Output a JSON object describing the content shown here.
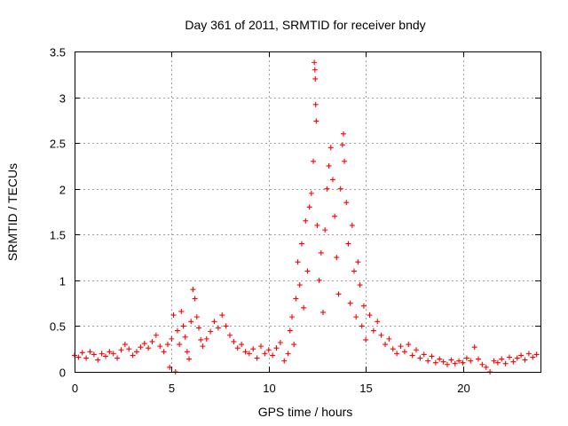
{
  "chart_data": {
    "type": "scatter",
    "title": "Day 361 of 2011, SRMTID for receiver bndy",
    "xlabel": "GPS time / hours",
    "ylabel": "SRMTID / TECUs",
    "xlim": [
      0,
      24
    ],
    "ylim": [
      0,
      3.5
    ],
    "xticks": [
      0,
      5,
      10,
      15,
      20
    ],
    "xtick_labels": [
      "0",
      "5",
      "10",
      "15",
      "20"
    ],
    "yticks": [
      0,
      0.5,
      1,
      1.5,
      2,
      2.5,
      3,
      3.5
    ],
    "ytick_labels": [
      "0",
      "0.5",
      "1",
      "1.5",
      "2",
      "2.5",
      "3",
      "3.5"
    ],
    "grid": true,
    "marker": "plus",
    "color": "#ff0000",
    "series": [
      {
        "name": "SRMTID",
        "points": [
          [
            0.0,
            0.18
          ],
          [
            0.2,
            0.16
          ],
          [
            0.4,
            0.21
          ],
          [
            0.6,
            0.15
          ],
          [
            0.8,
            0.22
          ],
          [
            1.0,
            0.19
          ],
          [
            1.2,
            0.13
          ],
          [
            1.4,
            0.2
          ],
          [
            1.6,
            0.17
          ],
          [
            1.8,
            0.22
          ],
          [
            2.0,
            0.2
          ],
          [
            2.2,
            0.15
          ],
          [
            2.4,
            0.24
          ],
          [
            2.6,
            0.3
          ],
          [
            2.8,
            0.25
          ],
          [
            3.0,
            0.18
          ],
          [
            3.2,
            0.22
          ],
          [
            3.4,
            0.27
          ],
          [
            3.6,
            0.31
          ],
          [
            3.8,
            0.26
          ],
          [
            4.0,
            0.33
          ],
          [
            4.2,
            0.4
          ],
          [
            4.4,
            0.28
          ],
          [
            4.6,
            0.22
          ],
          [
            4.8,
            0.3
          ],
          [
            4.9,
            0.05
          ],
          [
            5.0,
            0.36
          ],
          [
            5.1,
            0.62
          ],
          [
            5.2,
            0.0
          ],
          [
            5.3,
            0.45
          ],
          [
            5.4,
            0.3
          ],
          [
            5.5,
            0.66
          ],
          [
            5.6,
            0.5
          ],
          [
            5.7,
            0.38
          ],
          [
            5.8,
            0.22
          ],
          [
            5.9,
            0.14
          ],
          [
            6.0,
            0.55
          ],
          [
            6.1,
            0.9
          ],
          [
            6.2,
            0.8
          ],
          [
            6.3,
            0.6
          ],
          [
            6.4,
            0.48
          ],
          [
            6.5,
            0.35
          ],
          [
            6.6,
            0.28
          ],
          [
            6.8,
            0.36
          ],
          [
            7.0,
            0.44
          ],
          [
            7.2,
            0.55
          ],
          [
            7.4,
            0.48
          ],
          [
            7.6,
            0.62
          ],
          [
            7.8,
            0.5
          ],
          [
            8.0,
            0.4
          ],
          [
            8.2,
            0.33
          ],
          [
            8.4,
            0.26
          ],
          [
            8.6,
            0.3
          ],
          [
            8.8,
            0.22
          ],
          [
            9.0,
            0.2
          ],
          [
            9.2,
            0.25
          ],
          [
            9.4,
            0.15
          ],
          [
            9.6,
            0.28
          ],
          [
            9.8,
            0.2
          ],
          [
            10.0,
            0.24
          ],
          [
            10.2,
            0.18
          ],
          [
            10.4,
            0.26
          ],
          [
            10.6,
            0.32
          ],
          [
            10.8,
            0.12
          ],
          [
            11.0,
            0.2
          ],
          [
            11.1,
            0.45
          ],
          [
            11.2,
            0.6
          ],
          [
            11.3,
            0.3
          ],
          [
            11.4,
            0.8
          ],
          [
            11.5,
            1.2
          ],
          [
            11.6,
            0.95
          ],
          [
            11.7,
            1.4
          ],
          [
            11.8,
            0.7
          ],
          [
            11.9,
            1.65
          ],
          [
            12.0,
            1.1
          ],
          [
            12.1,
            1.8
          ],
          [
            12.2,
            1.95
          ],
          [
            12.3,
            2.3
          ],
          [
            12.35,
            3.38
          ],
          [
            12.38,
            3.3
          ],
          [
            12.4,
            3.2
          ],
          [
            12.42,
            2.92
          ],
          [
            12.45,
            2.74
          ],
          [
            12.5,
            1.6
          ],
          [
            12.6,
            1.0
          ],
          [
            12.7,
            1.3
          ],
          [
            12.8,
            0.65
          ],
          [
            12.9,
            1.55
          ],
          [
            13.0,
            2.0
          ],
          [
            13.1,
            2.25
          ],
          [
            13.2,
            2.45
          ],
          [
            13.3,
            2.1
          ],
          [
            13.4,
            1.7
          ],
          [
            13.5,
            1.25
          ],
          [
            13.6,
            0.85
          ],
          [
            13.7,
            2.0
          ],
          [
            13.8,
            2.48
          ],
          [
            13.85,
            2.6
          ],
          [
            13.9,
            2.3
          ],
          [
            14.0,
            1.85
          ],
          [
            14.1,
            1.4
          ],
          [
            14.2,
            0.75
          ],
          [
            14.3,
            1.6
          ],
          [
            14.4,
            1.1
          ],
          [
            14.5,
            0.6
          ],
          [
            14.6,
            1.2
          ],
          [
            14.7,
            0.95
          ],
          [
            14.8,
            0.5
          ],
          [
            14.9,
            0.72
          ],
          [
            15.0,
            0.35
          ],
          [
            15.2,
            0.62
          ],
          [
            15.4,
            0.45
          ],
          [
            15.6,
            0.55
          ],
          [
            15.8,
            0.4
          ],
          [
            16.0,
            0.3
          ],
          [
            16.2,
            0.36
          ],
          [
            16.4,
            0.25
          ],
          [
            16.6,
            0.2
          ],
          [
            16.8,
            0.28
          ],
          [
            17.0,
            0.22
          ],
          [
            17.2,
            0.3
          ],
          [
            17.4,
            0.18
          ],
          [
            17.6,
            0.24
          ],
          [
            17.8,
            0.15
          ],
          [
            18.0,
            0.19
          ],
          [
            18.2,
            0.12
          ],
          [
            18.4,
            0.17
          ],
          [
            18.6,
            0.1
          ],
          [
            18.8,
            0.14
          ],
          [
            19.0,
            0.11
          ],
          [
            19.2,
            0.08
          ],
          [
            19.4,
            0.13
          ],
          [
            19.6,
            0.09
          ],
          [
            19.8,
            0.12
          ],
          [
            20.0,
            0.1
          ],
          [
            20.2,
            0.15
          ],
          [
            20.4,
            0.12
          ],
          [
            20.6,
            0.27
          ],
          [
            20.8,
            0.14
          ],
          [
            21.0,
            0.08
          ],
          [
            21.2,
            0.05
          ],
          [
            21.4,
            0.0
          ],
          [
            21.6,
            0.12
          ],
          [
            21.8,
            0.1
          ],
          [
            22.0,
            0.14
          ],
          [
            22.2,
            0.09
          ],
          [
            22.4,
            0.16
          ],
          [
            22.6,
            0.11
          ],
          [
            22.8,
            0.15
          ],
          [
            23.0,
            0.18
          ],
          [
            23.2,
            0.13
          ],
          [
            23.4,
            0.2
          ],
          [
            23.6,
            0.16
          ],
          [
            23.8,
            0.19
          ]
        ]
      }
    ]
  }
}
